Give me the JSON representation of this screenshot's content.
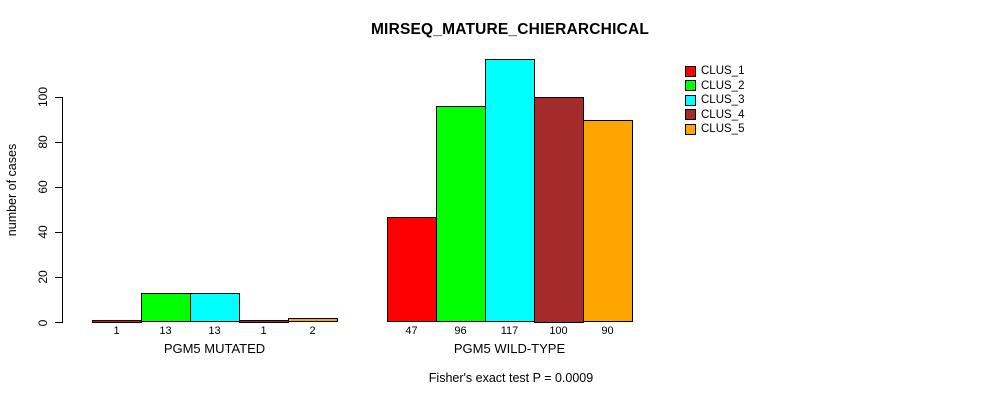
{
  "chart_data": {
    "type": "bar",
    "title": "MIRSEQ_MATURE_CHIERARCHICAL",
    "ylabel": "number of cases",
    "xlabel": "",
    "annotation": "Fisher's exact test P = 0.0009",
    "ylim": [
      0,
      117
    ],
    "yticks": [
      0,
      20,
      40,
      60,
      80,
      100
    ],
    "grid": false,
    "legend_position": "top-right",
    "categories": [
      "PGM5 MUTATED",
      "PGM5 WILD-TYPE"
    ],
    "series": [
      {
        "name": "CLUS_1",
        "color": "#ff0000",
        "values": [
          1,
          47
        ]
      },
      {
        "name": "CLUS_2",
        "color": "#00ff00",
        "values": [
          13,
          96
        ]
      },
      {
        "name": "CLUS_3",
        "color": "#00ffff",
        "values": [
          13,
          117
        ]
      },
      {
        "name": "CLUS_4",
        "color": "#a52a2a",
        "values": [
          1,
          100
        ]
      },
      {
        "name": "CLUS_5",
        "color": "#ffa500",
        "values": [
          2,
          90
        ]
      }
    ],
    "bar_value_labels": {
      "PGM5 MUTATED": [
        1,
        13,
        13,
        1,
        2
      ],
      "PGM5 WILD-TYPE": [
        47,
        96,
        117,
        100,
        90
      ]
    }
  }
}
